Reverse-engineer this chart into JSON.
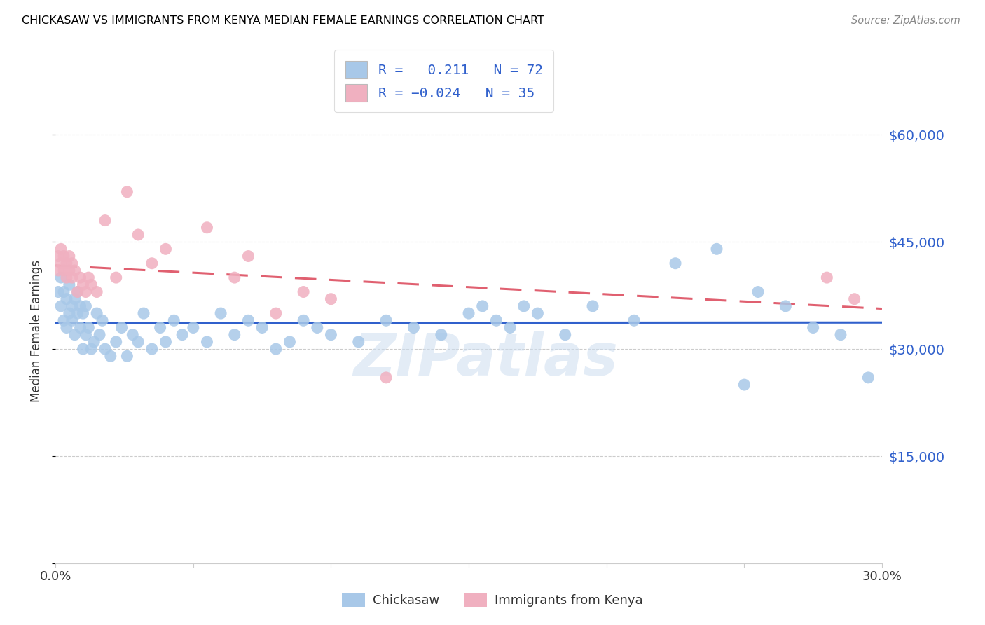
{
  "title": "CHICKASAW VS IMMIGRANTS FROM KENYA MEDIAN FEMALE EARNINGS CORRELATION CHART",
  "source": "Source: ZipAtlas.com",
  "ylabel": "Median Female Earnings",
  "yticks": [
    0,
    15000,
    30000,
    45000,
    60000
  ],
  "ytick_labels": [
    "",
    "$15,000",
    "$30,000",
    "$45,000",
    "$60,000"
  ],
  "xlim": [
    0.0,
    0.3
  ],
  "ylim": [
    0,
    65000
  ],
  "watermark": "ZIPatlas",
  "blue_color": "#a8c8e8",
  "pink_color": "#f0b0c0",
  "line_blue": "#3060cc",
  "line_pink": "#e06070",
  "R_blue": 0.211,
  "N_blue": 72,
  "R_pink": -0.024,
  "N_pink": 35,
  "legend_label_blue": "Chickasaw",
  "legend_label_pink": "Immigrants from Kenya",
  "blue_x": [
    0.001,
    0.002,
    0.002,
    0.003,
    0.003,
    0.004,
    0.004,
    0.005,
    0.005,
    0.006,
    0.006,
    0.007,
    0.007,
    0.008,
    0.008,
    0.009,
    0.009,
    0.01,
    0.01,
    0.011,
    0.011,
    0.012,
    0.013,
    0.014,
    0.015,
    0.016,
    0.017,
    0.018,
    0.02,
    0.022,
    0.024,
    0.026,
    0.028,
    0.03,
    0.032,
    0.035,
    0.038,
    0.04,
    0.043,
    0.046,
    0.05,
    0.055,
    0.06,
    0.065,
    0.07,
    0.075,
    0.08,
    0.085,
    0.09,
    0.095,
    0.1,
    0.11,
    0.12,
    0.13,
    0.14,
    0.15,
    0.155,
    0.16,
    0.165,
    0.17,
    0.175,
    0.185,
    0.195,
    0.21,
    0.225,
    0.24,
    0.255,
    0.265,
    0.275,
    0.285,
    0.25,
    0.295
  ],
  "blue_y": [
    38000,
    36000,
    40000,
    34000,
    38000,
    33000,
    37000,
    35000,
    39000,
    36000,
    34000,
    32000,
    37000,
    35000,
    38000,
    33000,
    36000,
    30000,
    35000,
    32000,
    36000,
    33000,
    30000,
    31000,
    35000,
    32000,
    34000,
    30000,
    29000,
    31000,
    33000,
    29000,
    32000,
    31000,
    35000,
    30000,
    33000,
    31000,
    34000,
    32000,
    33000,
    31000,
    35000,
    32000,
    34000,
    33000,
    30000,
    31000,
    34000,
    33000,
    32000,
    31000,
    34000,
    33000,
    32000,
    35000,
    36000,
    34000,
    33000,
    36000,
    35000,
    32000,
    36000,
    34000,
    42000,
    44000,
    38000,
    36000,
    33000,
    32000,
    25000,
    26000
  ],
  "pink_x": [
    0.001,
    0.001,
    0.002,
    0.002,
    0.003,
    0.003,
    0.004,
    0.004,
    0.005,
    0.005,
    0.006,
    0.006,
    0.007,
    0.008,
    0.009,
    0.01,
    0.011,
    0.012,
    0.013,
    0.015,
    0.018,
    0.022,
    0.026,
    0.03,
    0.035,
    0.04,
    0.055,
    0.065,
    0.07,
    0.08,
    0.09,
    0.1,
    0.12,
    0.28,
    0.29
  ],
  "pink_y": [
    41000,
    43000,
    42000,
    44000,
    41000,
    43000,
    40000,
    42000,
    41000,
    43000,
    40000,
    42000,
    41000,
    38000,
    40000,
    39000,
    38000,
    40000,
    39000,
    38000,
    48000,
    40000,
    52000,
    46000,
    42000,
    44000,
    47000,
    40000,
    43000,
    35000,
    38000,
    37000,
    26000,
    40000,
    37000
  ]
}
